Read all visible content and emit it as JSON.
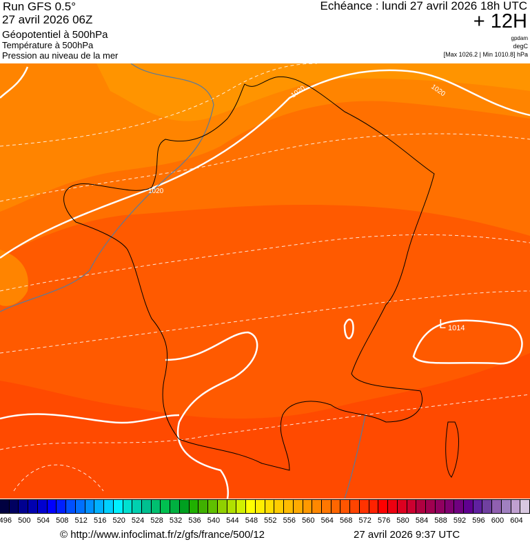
{
  "header": {
    "run": "Run GFS 0.5°",
    "run_date": "27 avril 2026 06Z",
    "field1": "Géopotentiel à 500hPa",
    "field2": "Température à 500hPa",
    "field3": "Pression au niveau de la mer",
    "valid_time": "Echéance : lundi 27 avril 2026 18h UTC",
    "lead": "+ 12H",
    "unit1": "gpdam",
    "unit2": "degC",
    "pressure_range": "[Max 1026.2 | Min 1010.8] hPa"
  },
  "map": {
    "isobar_labels": [
      "1020",
      "1020",
      "1020"
    ],
    "low_marker": "L",
    "low_value": "1014",
    "colors": {
      "band_top": "#ff9900",
      "band_mid": "#ff7700",
      "band_low": "#ff5a00",
      "band_south": "#ff4400",
      "isobar": "#ffffff",
      "coast": "#000000",
      "isotherm": "#5a7a9a"
    }
  },
  "colorbar": {
    "ticks": [
      "496",
      "500",
      "504",
      "508",
      "512",
      "516",
      "520",
      "524",
      "528",
      "532",
      "536",
      "540",
      "544",
      "548",
      "552",
      "556",
      "560",
      "564",
      "568",
      "572",
      "576",
      "580",
      "584",
      "588",
      "592",
      "596",
      "600",
      "604"
    ],
    "colors": [
      "#000040",
      "#000060",
      "#000090",
      "#0000b0",
      "#0000d0",
      "#0000ff",
      "#0020ff",
      "#0050ff",
      "#0070ff",
      "#0090ff",
      "#00b0ff",
      "#00d0ff",
      "#00f0ff",
      "#00e0d0",
      "#00d0b0",
      "#00c090",
      "#00c070",
      "#00c050",
      "#00b040",
      "#00a020",
      "#20b000",
      "#40b000",
      "#60c000",
      "#90d000",
      "#b0e000",
      "#d0f000",
      "#ffff00",
      "#ffee00",
      "#ffdd00",
      "#ffcc00",
      "#ffbb00",
      "#ffaa00",
      "#ff9900",
      "#ff8800",
      "#ff7700",
      "#ff6600",
      "#ff5500",
      "#ff4400",
      "#ff3300",
      "#ff2200",
      "#ff0000",
      "#ee0010",
      "#dd0020",
      "#cc0030",
      "#b00040",
      "#a00050",
      "#900060",
      "#800070",
      "#700080",
      "#600090",
      "#6020a0",
      "#7040a0",
      "#9060b0",
      "#a080c0",
      "#c0a0d0",
      "#d8c8e0"
    ]
  },
  "footer": {
    "credit": "© http://www.infoclimat.fr/z/gfs/france/500/12",
    "generated": "27 avril 2026  9:37 UTC"
  }
}
